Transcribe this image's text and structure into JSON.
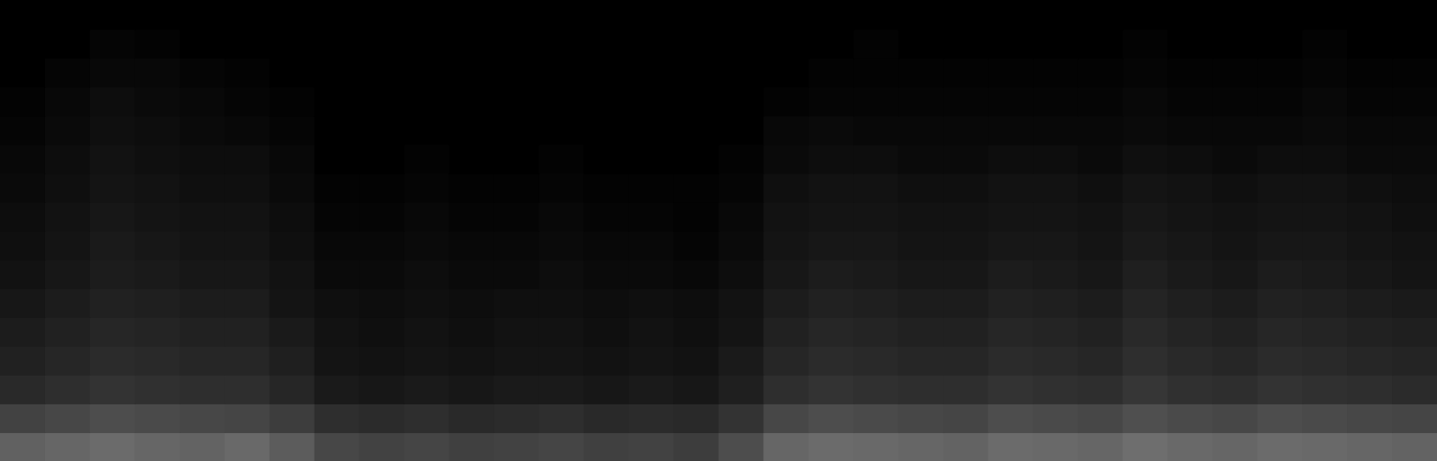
{
  "chart_data": {
    "type": "heatmap",
    "tick_labels": false,
    "zlim": [
      0,
      100
    ],
    "cells": [
      [
        38,
        40,
        42,
        40,
        39,
        41,
        36,
        28,
        26,
        27,
        25,
        26,
        27,
        25,
        26,
        24,
        30,
        40,
        42,
        41,
        40,
        39,
        42,
        41,
        40,
        43,
        41,
        40,
        42,
        41,
        40,
        39
      ],
      [
        26,
        28,
        30,
        29,
        28,
        27,
        24,
        18,
        17,
        18,
        16,
        17,
        18,
        16,
        17,
        16,
        20,
        28,
        30,
        29,
        28,
        27,
        30,
        29,
        28,
        31,
        29,
        28,
        30,
        29,
        28,
        27
      ],
      [
        16,
        18,
        20,
        19,
        18,
        18,
        15,
        10,
        9,
        10,
        9,
        10,
        10,
        9,
        10,
        9,
        12,
        18,
        20,
        19,
        18,
        18,
        20,
        19,
        18,
        21,
        19,
        18,
        20,
        19,
        18,
        17
      ],
      [
        13,
        15,
        17,
        16,
        15,
        15,
        12,
        8,
        7,
        8,
        7,
        8,
        8,
        7,
        8,
        7,
        10,
        15,
        17,
        16,
        15,
        15,
        17,
        16,
        15,
        18,
        16,
        15,
        17,
        16,
        15,
        14
      ],
      [
        11,
        13,
        15,
        14,
        13,
        13,
        10,
        7,
        6,
        7,
        6,
        7,
        7,
        6,
        7,
        6,
        8,
        13,
        15,
        14,
        13,
        13,
        15,
        14,
        13,
        16,
        14,
        13,
        15,
        14,
        13,
        12
      ],
      [
        9,
        11,
        13,
        12,
        11,
        11,
        8,
        6,
        5,
        6,
        5,
        6,
        6,
        5,
        6,
        5,
        7,
        11,
        13,
        12,
        11,
        11,
        13,
        12,
        11,
        14,
        12,
        11,
        13,
        12,
        11,
        10
      ],
      [
        7,
        9,
        11,
        10,
        9,
        9,
        7,
        4,
        4,
        5,
        4,
        4,
        5,
        4,
        4,
        3,
        5,
        9,
        11,
        10,
        9,
        9,
        11,
        10,
        9,
        12,
        10,
        9,
        11,
        10,
        9,
        8
      ],
      [
        6,
        8,
        10,
        9,
        8,
        8,
        6,
        3,
        3,
        4,
        3,
        3,
        4,
        3,
        3,
        2,
        4,
        8,
        9,
        9,
        8,
        8,
        9,
        9,
        8,
        10,
        9,
        8,
        9,
        9,
        8,
        7
      ],
      [
        5,
        7,
        9,
        8,
        7,
        7,
        5,
        2,
        2,
        3,
        2,
        2,
        3,
        2,
        2,
        1,
        3,
        7,
        8,
        8,
        7,
        7,
        8,
        8,
        7,
        9,
        8,
        7,
        8,
        8,
        7,
        6
      ],
      [
        4,
        6,
        8,
        7,
        6,
        6,
        4,
        1,
        1,
        2,
        1,
        1,
        2,
        1,
        1,
        1,
        2,
        6,
        7,
        7,
        6,
        6,
        7,
        7,
        6,
        8,
        7,
        6,
        7,
        7,
        6,
        5
      ],
      [
        3,
        5,
        7,
        6,
        5,
        5,
        3,
        0,
        0,
        1,
        0,
        0,
        1,
        0,
        0,
        0,
        1,
        4,
        5,
        5,
        4,
        4,
        5,
        5,
        4,
        6,
        5,
        4,
        5,
        5,
        4,
        4
      ],
      [
        2,
        4,
        6,
        5,
        4,
        3,
        2,
        0,
        0,
        0,
        0,
        0,
        0,
        0,
        0,
        0,
        0,
        3,
        4,
        3,
        3,
        3,
        3,
        3,
        3,
        4,
        3,
        3,
        3,
        4,
        3,
        3
      ],
      [
        1,
        3,
        5,
        4,
        3,
        2,
        1,
        0,
        0,
        0,
        0,
        0,
        0,
        0,
        0,
        0,
        0,
        1,
        2,
        2,
        2,
        2,
        2,
        2,
        2,
        3,
        2,
        2,
        2,
        3,
        2,
        2
      ],
      [
        0,
        2,
        3,
        3,
        2,
        1,
        0,
        0,
        0,
        0,
        0,
        0,
        0,
        0,
        0,
        0,
        0,
        0,
        1,
        1,
        1,
        1,
        1,
        1,
        1,
        2,
        1,
        1,
        1,
        2,
        1,
        1
      ],
      [
        0,
        0,
        2,
        1,
        0,
        0,
        0,
        0,
        0,
        0,
        0,
        0,
        0,
        0,
        0,
        0,
        0,
        0,
        0,
        1,
        0,
        0,
        0,
        0,
        0,
        1,
        0,
        0,
        0,
        1,
        0,
        0
      ],
      [
        0,
        0,
        0,
        0,
        0,
        0,
        0,
        0,
        0,
        0,
        0,
        0,
        0,
        0,
        0,
        0,
        0,
        0,
        0,
        0,
        0,
        0,
        0,
        0,
        0,
        0,
        0,
        0,
        0,
        0,
        0,
        0
      ]
    ]
  }
}
